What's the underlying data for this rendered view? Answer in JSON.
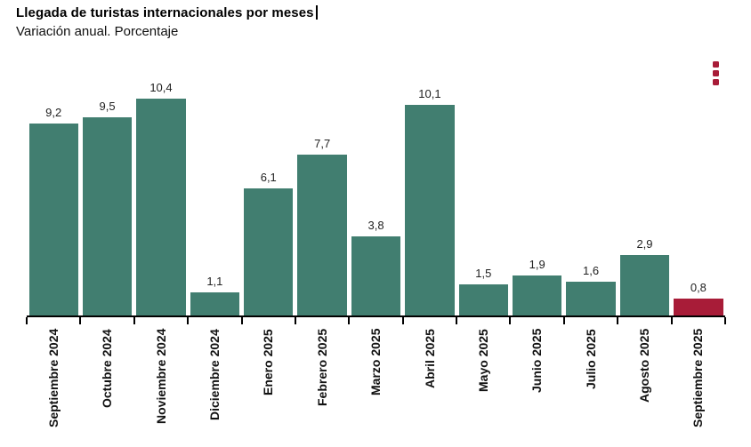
{
  "header": {
    "title": "Llegada de turistas internacionales por meses",
    "subtitle": "Variación anual. Porcentaje"
  },
  "menu": {
    "icon": "kebab-vertical-menu"
  },
  "chart_data": {
    "type": "bar",
    "title": "Llegada de turistas internacionales por meses",
    "subtitle": "Variación anual. Porcentaje",
    "categories": [
      "Septiembre 2024",
      "Octubre 2024",
      "Noviembre 2024",
      "Diciembre 2024",
      "Enero 2025",
      "Febrero 2025",
      "Marzo 2025",
      "Abril 2025",
      "Mayo 2025",
      "Junio 2025",
      "Julio 2025",
      "Agosto 2025",
      "Septiembre 2025"
    ],
    "values": [
      9.2,
      9.5,
      10.4,
      1.1,
      6.1,
      7.7,
      3.8,
      10.1,
      1.5,
      1.9,
      1.6,
      2.9,
      0.8
    ],
    "values_display": [
      "9,2",
      "9,5",
      "10,4",
      "1,1",
      "6,1",
      "7,7",
      "3,8",
      "10,1",
      "1,5",
      "1,9",
      "1,6",
      "2,9",
      "0,8"
    ],
    "ylim": [
      0,
      10.4
    ],
    "grid": false,
    "legend": false,
    "x_label_rotation": -90,
    "highlight_index": 12,
    "colors": {
      "bar": "#417E70",
      "highlight": "#A81C38",
      "axis": "#000000"
    }
  }
}
